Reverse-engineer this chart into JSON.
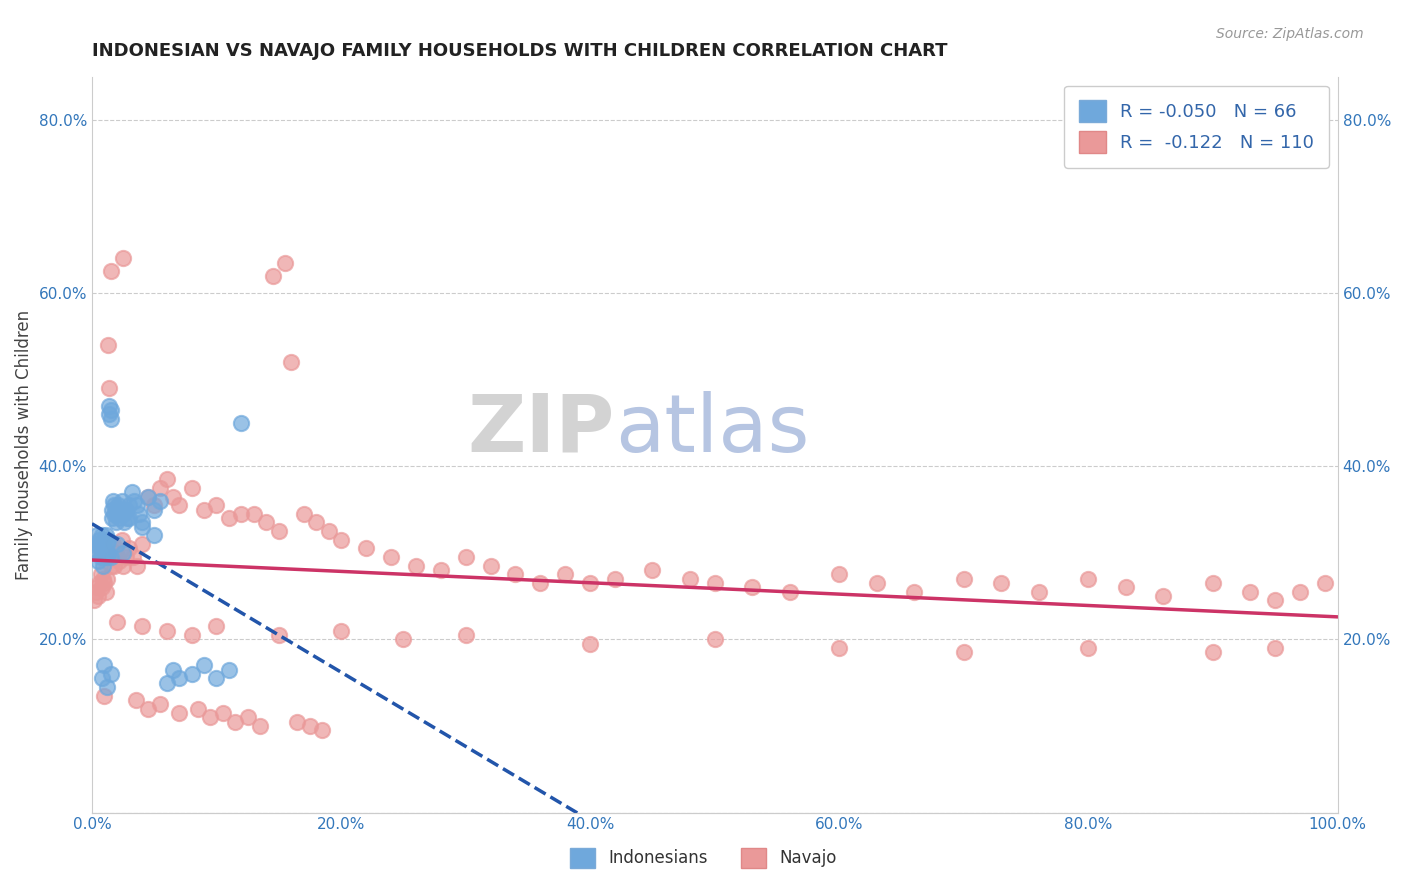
{
  "title": "INDONESIAN VS NAVAJO FAMILY HOUSEHOLDS WITH CHILDREN CORRELATION CHART",
  "source": "Source: ZipAtlas.com",
  "ylabel": "Family Households with Children",
  "xlim": [
    0,
    1
  ],
  "ylim": [
    0,
    0.85
  ],
  "x_ticks": [
    0.0,
    0.2,
    0.4,
    0.6,
    0.8,
    1.0
  ],
  "x_tick_labels": [
    "0.0%",
    "20.0%",
    "40.0%",
    "60.0%",
    "80.0%",
    "100.0%"
  ],
  "y_ticks": [
    0.0,
    0.2,
    0.4,
    0.6,
    0.8
  ],
  "y_tick_labels": [
    "",
    "20.0%",
    "40.0%",
    "60.0%",
    "80.0%"
  ],
  "indonesian_R": -0.05,
  "indonesian_N": 66,
  "navajo_R": -0.122,
  "navajo_N": 110,
  "blue_color": "#6fa8dc",
  "pink_color": "#ea9999",
  "blue_line_color": "#2255aa",
  "pink_line_color": "#cc3366",
  "background_color": "#ffffff",
  "indonesian_x": [
    0.003,
    0.004,
    0.005,
    0.005,
    0.006,
    0.006,
    0.007,
    0.007,
    0.008,
    0.008,
    0.009,
    0.009,
    0.01,
    0.01,
    0.011,
    0.011,
    0.012,
    0.012,
    0.013,
    0.013,
    0.014,
    0.014,
    0.015,
    0.015,
    0.016,
    0.016,
    0.017,
    0.018,
    0.018,
    0.019,
    0.02,
    0.021,
    0.022,
    0.023,
    0.024,
    0.025,
    0.026,
    0.027,
    0.028,
    0.03,
    0.032,
    0.034,
    0.036,
    0.038,
    0.04,
    0.045,
    0.05,
    0.055,
    0.06,
    0.065,
    0.07,
    0.08,
    0.09,
    0.1,
    0.11,
    0.12,
    0.04,
    0.05,
    0.015,
    0.02,
    0.025,
    0.03,
    0.008,
    0.01,
    0.015,
    0.012
  ],
  "indonesian_y": [
    0.3,
    0.32,
    0.31,
    0.29,
    0.305,
    0.315,
    0.295,
    0.31,
    0.3,
    0.32,
    0.285,
    0.305,
    0.295,
    0.315,
    0.3,
    0.32,
    0.295,
    0.31,
    0.3,
    0.315,
    0.46,
    0.47,
    0.455,
    0.465,
    0.34,
    0.35,
    0.36,
    0.345,
    0.355,
    0.335,
    0.345,
    0.355,
    0.34,
    0.35,
    0.36,
    0.345,
    0.335,
    0.35,
    0.34,
    0.355,
    0.37,
    0.36,
    0.355,
    0.345,
    0.335,
    0.365,
    0.35,
    0.36,
    0.15,
    0.165,
    0.155,
    0.16,
    0.17,
    0.155,
    0.165,
    0.45,
    0.33,
    0.32,
    0.295,
    0.31,
    0.3,
    0.34,
    0.155,
    0.17,
    0.16,
    0.145
  ],
  "navajo_x": [
    0.002,
    0.003,
    0.004,
    0.005,
    0.006,
    0.007,
    0.008,
    0.009,
    0.01,
    0.011,
    0.012,
    0.013,
    0.014,
    0.015,
    0.016,
    0.017,
    0.018,
    0.019,
    0.02,
    0.022,
    0.024,
    0.025,
    0.027,
    0.03,
    0.033,
    0.036,
    0.04,
    0.045,
    0.05,
    0.055,
    0.06,
    0.065,
    0.07,
    0.08,
    0.09,
    0.1,
    0.11,
    0.12,
    0.13,
    0.14,
    0.15,
    0.16,
    0.17,
    0.18,
    0.19,
    0.2,
    0.22,
    0.24,
    0.26,
    0.28,
    0.3,
    0.32,
    0.34,
    0.36,
    0.38,
    0.4,
    0.42,
    0.45,
    0.48,
    0.5,
    0.53,
    0.56,
    0.6,
    0.63,
    0.66,
    0.7,
    0.73,
    0.76,
    0.8,
    0.83,
    0.86,
    0.9,
    0.93,
    0.95,
    0.97,
    0.99,
    0.02,
    0.04,
    0.06,
    0.08,
    0.1,
    0.15,
    0.2,
    0.25,
    0.3,
    0.4,
    0.5,
    0.6,
    0.7,
    0.8,
    0.9,
    0.95,
    0.01,
    0.015,
    0.025,
    0.035,
    0.045,
    0.055,
    0.07,
    0.085,
    0.095,
    0.105,
    0.115,
    0.125,
    0.135,
    0.145,
    0.155,
    0.165,
    0.175,
    0.185
  ],
  "navajo_y": [
    0.245,
    0.255,
    0.26,
    0.25,
    0.265,
    0.275,
    0.26,
    0.27,
    0.265,
    0.255,
    0.27,
    0.54,
    0.49,
    0.285,
    0.295,
    0.31,
    0.285,
    0.3,
    0.295,
    0.29,
    0.315,
    0.285,
    0.295,
    0.305,
    0.295,
    0.285,
    0.31,
    0.365,
    0.355,
    0.375,
    0.385,
    0.365,
    0.355,
    0.375,
    0.35,
    0.355,
    0.34,
    0.345,
    0.345,
    0.335,
    0.325,
    0.52,
    0.345,
    0.335,
    0.325,
    0.315,
    0.305,
    0.295,
    0.285,
    0.28,
    0.295,
    0.285,
    0.275,
    0.265,
    0.275,
    0.265,
    0.27,
    0.28,
    0.27,
    0.265,
    0.26,
    0.255,
    0.275,
    0.265,
    0.255,
    0.27,
    0.265,
    0.255,
    0.27,
    0.26,
    0.25,
    0.265,
    0.255,
    0.245,
    0.255,
    0.265,
    0.22,
    0.215,
    0.21,
    0.205,
    0.215,
    0.205,
    0.21,
    0.2,
    0.205,
    0.195,
    0.2,
    0.19,
    0.185,
    0.19,
    0.185,
    0.19,
    0.135,
    0.625,
    0.64,
    0.13,
    0.12,
    0.125,
    0.115,
    0.12,
    0.11,
    0.115,
    0.105,
    0.11,
    0.1,
    0.62,
    0.635,
    0.105,
    0.1,
    0.095
  ]
}
